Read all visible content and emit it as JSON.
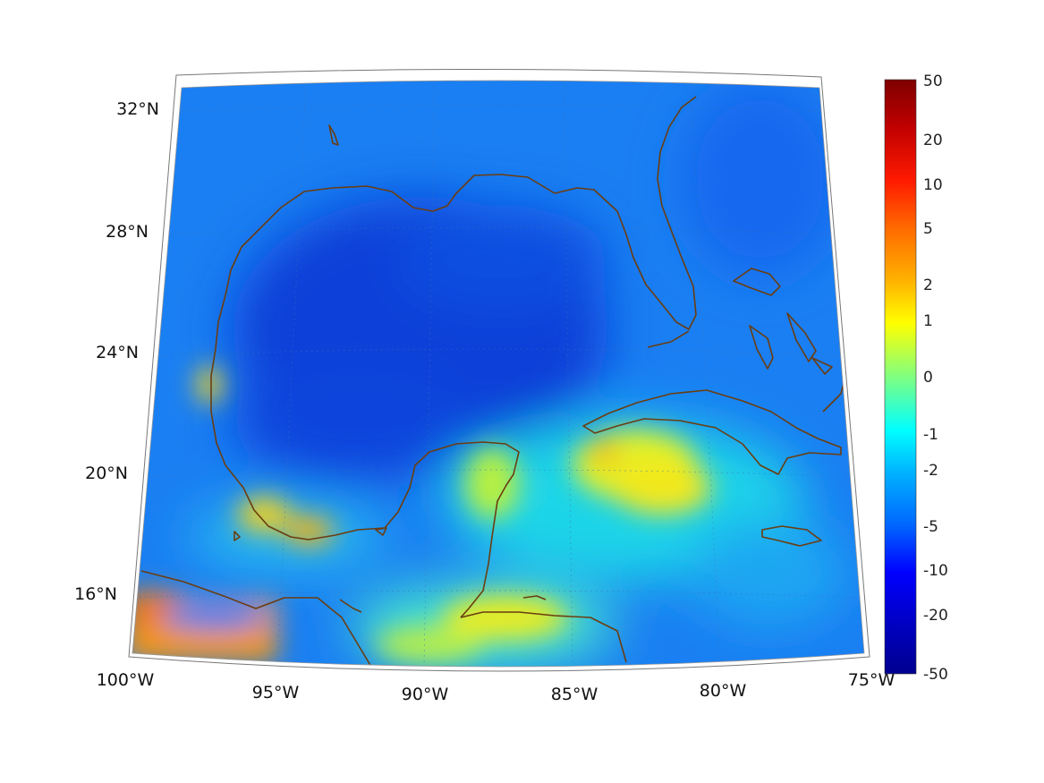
{
  "map": {
    "lon_labels": [
      "100°W",
      "95°W",
      "90°W",
      "85°W",
      "80°W",
      "75°W"
    ],
    "lat_labels": [
      "32°N",
      "28°N",
      "24°N",
      "20°N",
      "16°N"
    ],
    "colors": {
      "deep_blue": "#0b3fd8",
      "mid_blue": "#1a6ff0",
      "light_blue": "#1e93f5",
      "cyan": "#1fd4e8",
      "green_yellow": "#c8f03a",
      "yellow": "#f2e81e",
      "orange": "#f39512",
      "coast": "#6b3d10"
    }
  },
  "colorbar": {
    "ticks": [
      "50",
      "20",
      "10",
      "5",
      "2",
      "1",
      "0",
      "-1",
      "-2",
      "-5",
      "-10",
      "-20",
      "-50"
    ],
    "colors": [
      "#7f0000",
      "#b40000",
      "#ff1a00",
      "#ff6a00",
      "#ffb400",
      "#ffff00",
      "#80ff80",
      "#00ffff",
      "#00b4ff",
      "#0066ff",
      "#0000ff",
      "#00008f"
    ]
  }
}
